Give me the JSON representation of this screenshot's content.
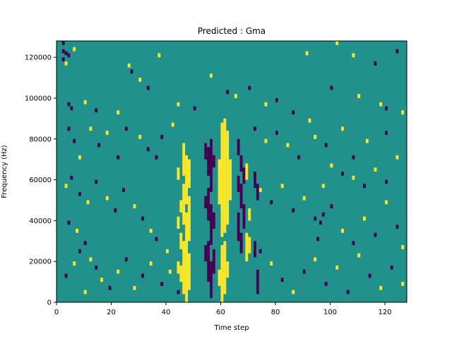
{
  "chart_data": {
    "type": "heatmap",
    "title": "Predicted : Gma",
    "xlabel": "Time step",
    "ylabel": "Frequency (Hz)",
    "xlim": [
      0,
      128
    ],
    "ylim": [
      0,
      128000
    ],
    "xticks": [
      0,
      20,
      40,
      60,
      80,
      100,
      120
    ],
    "yticks": [
      0,
      20000,
      40000,
      60000,
      80000,
      100000,
      120000
    ],
    "colormap": [
      "#440154",
      "#21918c",
      "#fde725"
    ],
    "background_value": 0,
    "cells": [
      [
        2,
        126000,
        -1
      ],
      [
        2,
        122000,
        -1
      ],
      [
        2,
        118000,
        -1
      ],
      [
        3,
        121000,
        -1
      ],
      [
        6,
        123000,
        1
      ],
      [
        4,
        120000,
        -1
      ],
      [
        3,
        116000,
        1
      ],
      [
        26,
        115000,
        1
      ],
      [
        37,
        120000,
        1
      ],
      [
        91,
        121000,
        1
      ],
      [
        102,
        126000,
        1
      ],
      [
        108,
        120000,
        1
      ],
      [
        124,
        122000,
        -1
      ],
      [
        116,
        116000,
        -1
      ],
      [
        4,
        96000,
        -1
      ],
      [
        5,
        94000,
        -1
      ],
      [
        10,
        97000,
        1
      ],
      [
        14,
        93000,
        -1
      ],
      [
        22,
        92000,
        1
      ],
      [
        27,
        112000,
        -1
      ],
      [
        30,
        108000,
        1
      ],
      [
        33,
        104000,
        -1
      ],
      [
        44,
        96000,
        1
      ],
      [
        50,
        94000,
        -1
      ],
      [
        56,
        110000,
        1
      ],
      [
        62,
        102000,
        -1
      ],
      [
        65,
        100000,
        1
      ],
      [
        70,
        104000,
        -1
      ],
      [
        76,
        96000,
        1
      ],
      [
        80,
        98000,
        -1
      ],
      [
        86,
        92000,
        -1
      ],
      [
        92,
        88000,
        1
      ],
      [
        100,
        104000,
        -1
      ],
      [
        110,
        100000,
        1
      ],
      [
        118,
        96000,
        1
      ],
      [
        120,
        94000,
        -1
      ],
      [
        126,
        92000,
        1
      ],
      [
        4,
        84000,
        -1
      ],
      [
        6,
        78000,
        -1
      ],
      [
        8,
        70000,
        1
      ],
      [
        12,
        84000,
        1
      ],
      [
        15,
        76000,
        -1
      ],
      [
        18,
        82000,
        1
      ],
      [
        22,
        70000,
        -1
      ],
      [
        25,
        84000,
        -1
      ],
      [
        30,
        80000,
        1
      ],
      [
        33,
        74000,
        -1
      ],
      [
        38,
        80000,
        -1
      ],
      [
        42,
        86000,
        1
      ],
      [
        36,
        70000,
        -1
      ],
      [
        72,
        84000,
        -1
      ],
      [
        76,
        78000,
        1
      ],
      [
        80,
        82000,
        -1
      ],
      [
        84,
        76000,
        1
      ],
      [
        88,
        70000,
        -1
      ],
      [
        94,
        80000,
        1
      ],
      [
        98,
        76000,
        -1
      ],
      [
        104,
        84000,
        1
      ],
      [
        108,
        70000,
        -1
      ],
      [
        113,
        78000,
        1
      ],
      [
        120,
        82000,
        -1
      ],
      [
        124,
        70000,
        1
      ],
      [
        3,
        56000,
        1
      ],
      [
        5,
        60000,
        -1
      ],
      [
        8,
        52000,
        -1
      ],
      [
        11,
        48000,
        1
      ],
      [
        14,
        58000,
        -1
      ],
      [
        18,
        50000,
        1
      ],
      [
        21,
        44000,
        -1
      ],
      [
        24,
        54000,
        -1
      ],
      [
        28,
        46000,
        1
      ],
      [
        31,
        40000,
        -1
      ],
      [
        34,
        34000,
        1
      ],
      [
        36,
        30000,
        -1
      ],
      [
        40,
        24000,
        1
      ],
      [
        4,
        38000,
        -1
      ],
      [
        7,
        34000,
        1
      ],
      [
        10,
        28000,
        -1
      ],
      [
        12,
        20000,
        1
      ],
      [
        14,
        16000,
        -1
      ],
      [
        16,
        10000,
        1
      ],
      [
        19,
        6000,
        -1
      ],
      [
        22,
        14000,
        1
      ],
      [
        25,
        20000,
        -1
      ],
      [
        28,
        6000,
        1
      ],
      [
        31,
        12000,
        -1
      ],
      [
        34,
        18000,
        1
      ],
      [
        38,
        8000,
        -1
      ],
      [
        41,
        14000,
        1
      ],
      [
        44,
        4000,
        -1
      ],
      [
        3,
        12000,
        -1
      ],
      [
        6,
        18000,
        1
      ],
      [
        8,
        24000,
        -1
      ],
      [
        10,
        4000,
        1
      ],
      [
        74,
        54000,
        1
      ],
      [
        78,
        48000,
        -1
      ],
      [
        82,
        56000,
        1
      ],
      [
        86,
        44000,
        -1
      ],
      [
        90,
        50000,
        1
      ],
      [
        94,
        40000,
        -1
      ],
      [
        97,
        56000,
        1
      ],
      [
        100,
        46000,
        -1
      ],
      [
        104,
        34000,
        1
      ],
      [
        108,
        28000,
        -1
      ],
      [
        112,
        40000,
        1
      ],
      [
        116,
        32000,
        -1
      ],
      [
        120,
        48000,
        1
      ],
      [
        124,
        36000,
        -1
      ],
      [
        126,
        26000,
        1
      ],
      [
        74,
        24000,
        -1
      ],
      [
        78,
        18000,
        1
      ],
      [
        82,
        10000,
        -1
      ],
      [
        86,
        4000,
        1
      ],
      [
        90,
        14000,
        -1
      ],
      [
        94,
        20000,
        1
      ],
      [
        98,
        8000,
        -1
      ],
      [
        102,
        16000,
        1
      ],
      [
        106,
        4000,
        -1
      ],
      [
        110,
        22000,
        1
      ],
      [
        114,
        12000,
        -1
      ],
      [
        118,
        6000,
        1
      ],
      [
        122,
        16000,
        -1
      ],
      [
        126,
        8000,
        1
      ],
      [
        96,
        38000,
        -1
      ],
      [
        97,
        42000,
        -1
      ],
      [
        95,
        30000,
        -1
      ],
      [
        108,
        60000,
        1
      ],
      [
        112,
        56000,
        -1
      ],
      [
        116,
        64000,
        1
      ],
      [
        120,
        58000,
        -1
      ],
      [
        104,
        62000,
        -1
      ],
      [
        100,
        66000,
        1
      ]
    ],
    "columns": [
      {
        "x": 46,
        "value": 1,
        "segments": [
          [
            4000,
            30000
          ],
          [
            38000,
            58000
          ],
          [
            62000,
            78000
          ]
        ]
      },
      {
        "x": 47,
        "value": 1,
        "segments": [
          [
            0,
            44000
          ],
          [
            48000,
            72000
          ]
        ]
      },
      {
        "x": 48,
        "value": 1,
        "segments": [
          [
            6000,
            24000
          ],
          [
            30000,
            52000
          ],
          [
            56000,
            70000
          ]
        ]
      },
      {
        "x": 45,
        "value": 1,
        "segments": [
          [
            10000,
            18000
          ],
          [
            26000,
            34000
          ],
          [
            44000,
            50000
          ]
        ]
      },
      {
        "x": 44,
        "value": 1,
        "segments": [
          [
            14000,
            20000
          ],
          [
            36000,
            42000
          ],
          [
            60000,
            66000
          ]
        ]
      },
      {
        "x": 55,
        "value": -1,
        "segments": [
          [
            10000,
            30000
          ],
          [
            40000,
            56000
          ],
          [
            62000,
            76000
          ]
        ]
      },
      {
        "x": 56,
        "value": -1,
        "segments": [
          [
            2000,
            20000
          ],
          [
            28000,
            48000
          ],
          [
            54000,
            80000
          ]
        ]
      },
      {
        "x": 57,
        "value": -1,
        "segments": [
          [
            14000,
            26000
          ],
          [
            36000,
            44000
          ],
          [
            66000,
            72000
          ]
        ]
      },
      {
        "x": 54,
        "value": -1,
        "segments": [
          [
            20000,
            28000
          ],
          [
            46000,
            52000
          ],
          [
            70000,
            78000
          ]
        ]
      },
      {
        "x": 60,
        "value": 1,
        "segments": [
          [
            0,
            28000
          ],
          [
            32000,
            88000
          ]
        ]
      },
      {
        "x": 61,
        "value": 1,
        "segments": [
          [
            4000,
            30000
          ],
          [
            34000,
            90000
          ]
        ]
      },
      {
        "x": 62,
        "value": 1,
        "segments": [
          [
            12000,
            20000
          ],
          [
            38000,
            84000
          ]
        ]
      },
      {
        "x": 59,
        "value": 1,
        "segments": [
          [
            8000,
            16000
          ],
          [
            48000,
            70000
          ]
        ]
      },
      {
        "x": 63,
        "value": 1,
        "segments": [
          [
            50000,
            70000
          ]
        ]
      },
      {
        "x": 66,
        "value": -1,
        "segments": [
          [
            30000,
            44000
          ],
          [
            54000,
            62000
          ],
          [
            72000,
            80000
          ]
        ]
      },
      {
        "x": 67,
        "value": -1,
        "segments": [
          [
            24000,
            34000
          ],
          [
            46000,
            58000
          ],
          [
            64000,
            72000
          ]
        ]
      },
      {
        "x": 68,
        "value": -1,
        "segments": [
          [
            36000,
            48000
          ],
          [
            58000,
            66000
          ]
        ]
      },
      {
        "x": 69,
        "value": 1,
        "segments": [
          [
            20000,
            34000
          ],
          [
            60000,
            68000
          ]
        ]
      },
      {
        "x": 70,
        "value": 1,
        "segments": [
          [
            24000,
            32000
          ],
          [
            40000,
            46000
          ]
        ]
      },
      {
        "x": 72,
        "value": -1,
        "segments": [
          [
            22000,
            30000
          ],
          [
            56000,
            64000
          ]
        ]
      },
      {
        "x": 73,
        "value": -1,
        "segments": [
          [
            4000,
            16000
          ],
          [
            50000,
            58000
          ]
        ]
      }
    ]
  }
}
